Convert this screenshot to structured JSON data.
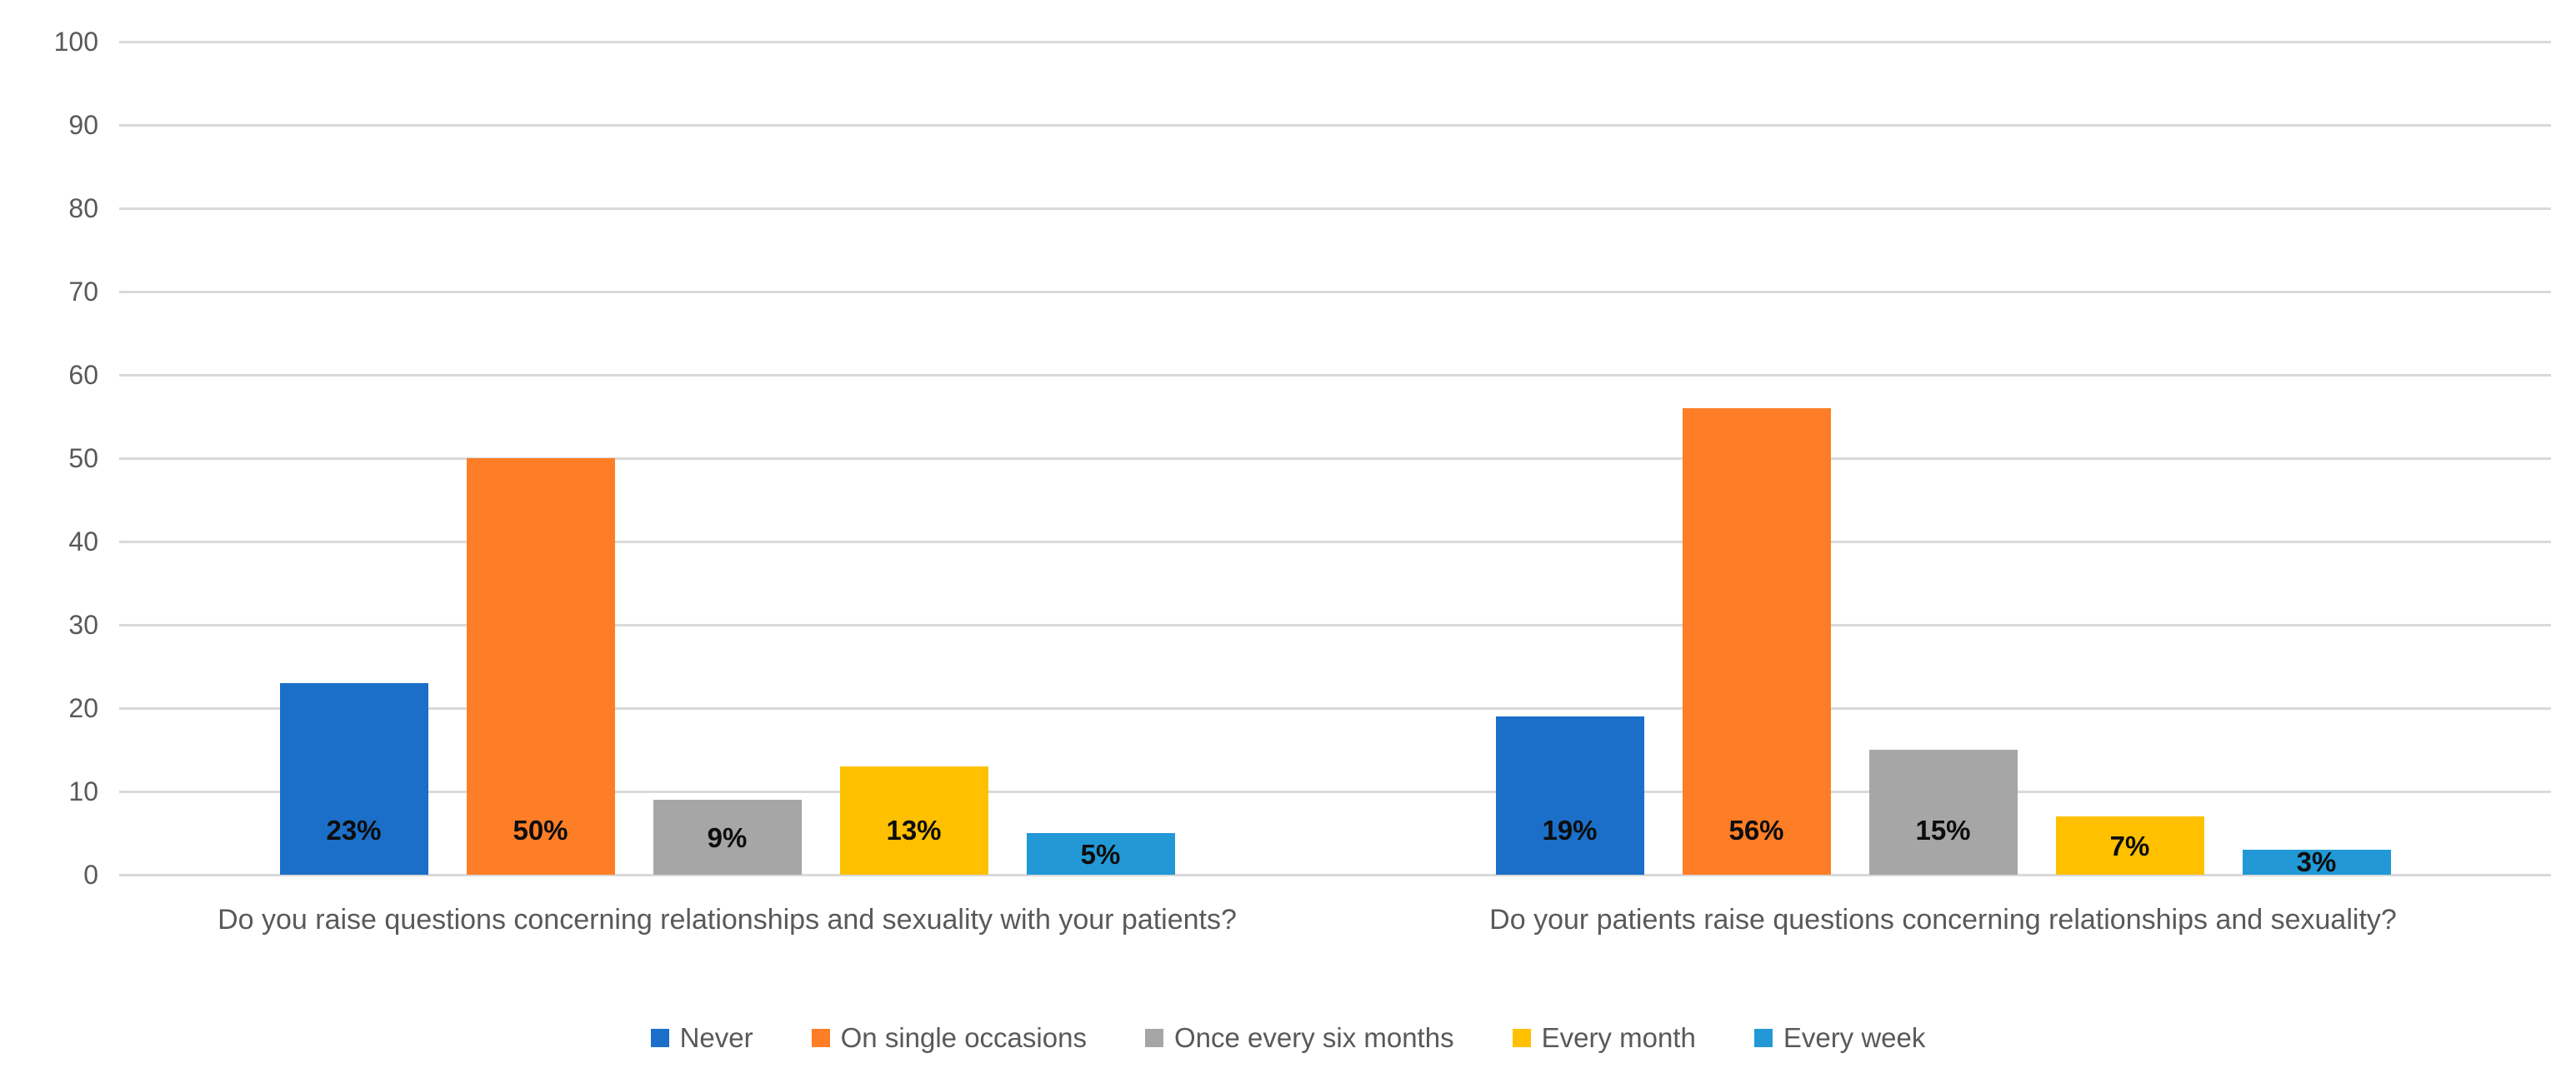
{
  "chart_data": {
    "type": "bar",
    "title": "",
    "xlabel": "",
    "ylabel": "",
    "categories": [
      "Do you raise questions concerning relationships and sexuality with your patients?",
      "Do your patients raise questions concerning relationships and sexuality?"
    ],
    "series": [
      {
        "name": "Never",
        "color": "#1b6fc9",
        "values": [
          23,
          19
        ],
        "labels": [
          "23%",
          "19%"
        ]
      },
      {
        "name": "On single occasions",
        "color": "#fd7e27",
        "values": [
          50,
          56
        ],
        "labels": [
          "50%",
          "56%"
        ]
      },
      {
        "name": "Once every six months",
        "color": "#a6a6a6",
        "values": [
          9,
          15
        ],
        "labels": [
          "9%",
          "15%"
        ]
      },
      {
        "name": "Every month",
        "color": "#ffc000",
        "values": [
          13,
          7
        ],
        "labels": [
          "13%",
          "7%"
        ]
      },
      {
        "name": "Every week",
        "color": "#2299d6",
        "values": [
          5,
          3
        ],
        "labels": [
          "5%",
          "3%"
        ]
      }
    ],
    "yticks": [
      0,
      10,
      20,
      30,
      40,
      50,
      60,
      70,
      80,
      90,
      100
    ],
    "ylim": [
      0,
      100
    ],
    "grid": true,
    "gridline_color": "#d9d9d9",
    "axis_text_color": "#595959",
    "data_label_color": "#0d0d0d",
    "legend_position": "bottom",
    "legend_labels": [
      "Never",
      "On single occasions",
      "Once every six months",
      "Every month",
      "Every week"
    ]
  }
}
